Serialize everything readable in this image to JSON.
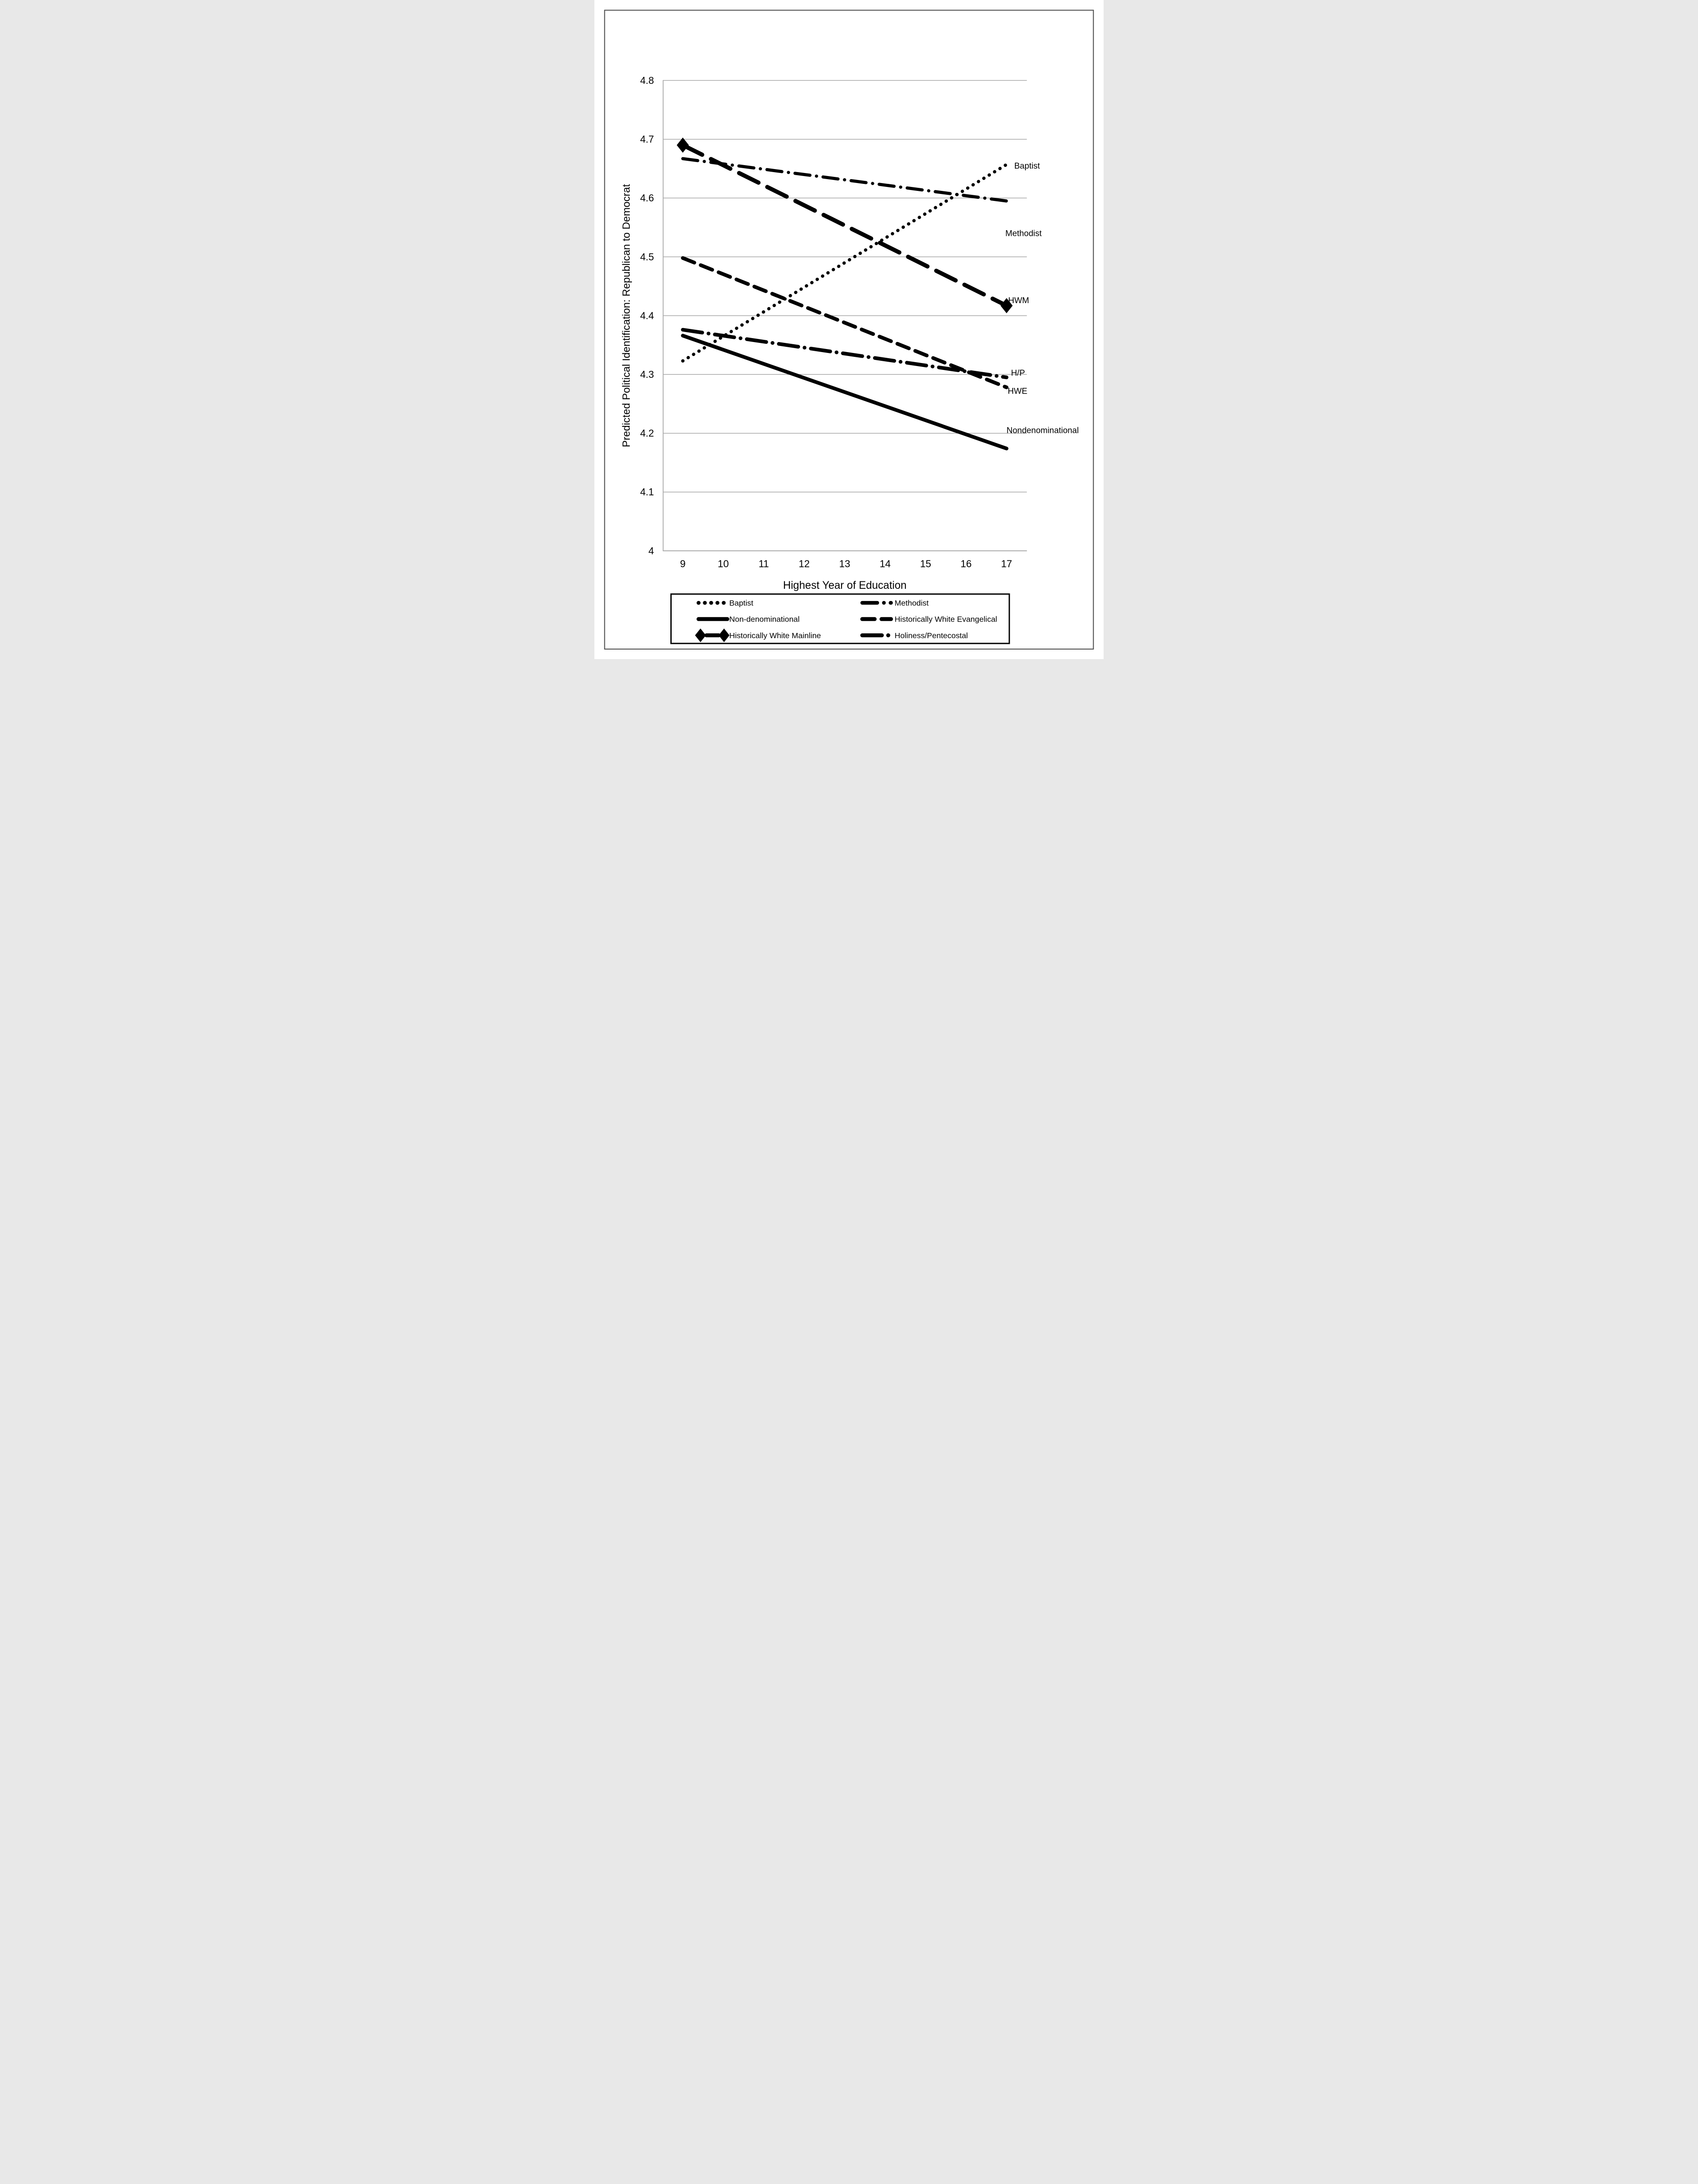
{
  "page": {
    "background": "#ffffff",
    "border_color": "#4d4d4d",
    "gridline_color": "#a6a6a6",
    "axis_color": "#a6a6a6",
    "line_color": "#000000",
    "legend_border_color": "#000000"
  },
  "chart_data": {
    "type": "line",
    "title": "",
    "xlabel": "Highest Year of Education",
    "ylabel": "Predicted Political Identification: Republican to Democrat",
    "x": [
      9,
      17
    ],
    "xticks": [
      9,
      10,
      11,
      12,
      13,
      14,
      15,
      16,
      17
    ],
    "yticks": [
      4,
      4.1,
      4.2,
      4.3,
      4.4,
      4.5,
      4.6,
      4.7,
      4.8
    ],
    "xlim": [
      8.5,
      17.5
    ],
    "ylim": [
      4,
      4.8
    ],
    "grid": "horizontal-only",
    "legend_position": "bottom",
    "series": [
      {
        "name": "baptist",
        "label": "Baptist",
        "style": "dotted",
        "values": [
          4.323,
          4.657
        ],
        "marker": "none"
      },
      {
        "name": "methodist",
        "label": "Methodist",
        "style": "dashdot",
        "values": [
          4.667,
          4.595
        ],
        "marker": "none"
      },
      {
        "name": "non-denominational",
        "label": "Non-denominational",
        "style": "solid",
        "values": [
          4.366,
          4.174
        ],
        "marker": "none"
      },
      {
        "name": "historically-white-evangelical",
        "label": "Historically White Evangelical",
        "style": "dashed",
        "values": [
          4.498,
          4.278
        ],
        "marker": "none"
      },
      {
        "name": "historically-white-mainline",
        "label": "Historically White Mainline",
        "style": "longdash",
        "values": [
          4.69,
          4.417
        ],
        "marker": "diamond"
      },
      {
        "name": "holiness-pentecostal",
        "label": "Holiness/Pentecostal",
        "style": "longdashdot",
        "values": [
          4.376,
          4.295
        ],
        "marker": "none"
      }
    ],
    "annotations": [
      {
        "text": "Baptist",
        "x": 17.19,
        "y": 4.655
      },
      {
        "text": "Methodist",
        "x": 16.97,
        "y": 4.54
      },
      {
        "text": "HWM",
        "x": 17.04,
        "y": 4.426
      },
      {
        "text": "H/P",
        "x": 17.11,
        "y": 4.303
      },
      {
        "text": "HWE",
        "x": 17.03,
        "y": 4.272
      },
      {
        "text": "Nondenominational",
        "x": 17.0,
        "y": 4.205
      }
    ],
    "legend": {
      "rows": [
        [
          "Baptist",
          "Methodist"
        ],
        [
          "Non-denominational",
          "Historically White Evangelical"
        ],
        [
          "Historically White Mainline",
          "Holiness/Pentecostal"
        ]
      ]
    }
  }
}
